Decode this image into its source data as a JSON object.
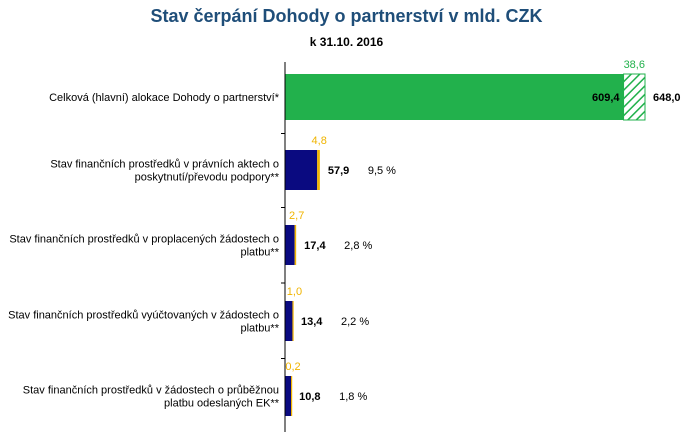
{
  "chart_data": {
    "type": "bar",
    "orientation": "horizontal",
    "title": "Stav čerpání Dohody o partnerství v mld. CZK",
    "subtitle": "k 31.10. 2016",
    "categories": [
      "Celková (hlavní) alokace Dohody o partnerství*",
      "Stav finančních prostředků v právních aktech o poskytnutí/převodu podpory**",
      "Stav finančních prostředků v proplacených žádostech o platbu**",
      "Stav finančních prostředků vyúčtovaných v žádostech o platbu**",
      "Stav finančních prostředků v žádostech o průběžnou platbu odeslaných EK**"
    ],
    "category_lines": [
      [
        "Celková (hlavní) alokace Dohody o partnerství*"
      ],
      [
        "Stav finančních prostředků v právních aktech o",
        "poskytnutí/převodu podpory**"
      ],
      [
        "Stav finančních prostředků v proplacených žádostech o",
        "platbu**"
      ],
      [
        "Stav finančních prostředků vyúčtovaných v žádostech o",
        "platbu**"
      ],
      [
        "Stav finančních prostředků v žádostech o průběžnou",
        "platbu odeslaných EK**"
      ]
    ],
    "series": [
      {
        "values": [
          609.4,
          57.9,
          17.4,
          13.4,
          10.8
        ],
        "value_labels": [
          "609,4",
          "57,9",
          "17,4",
          "13,4",
          "10,8"
        ]
      },
      {
        "values": [
          38.6,
          4.8,
          2.7,
          1.0,
          0.2
        ],
        "value_labels": [
          "38,6",
          "4,8",
          "2,7",
          "1,0",
          "0,2"
        ]
      }
    ],
    "totals": [
      {
        "value": 648.0,
        "label": "648,0"
      }
    ],
    "percent_labels": [
      "",
      "9,5 %",
      "2,8 %",
      "2,2 %",
      "1,8 %"
    ],
    "xlim": [
      0,
      648
    ],
    "grid": false,
    "colors": {
      "title": "#1f4e79",
      "allocation": "#22b14c",
      "allocation_reserve_hatch": "#22b14c",
      "main_bars": "#0a0a80",
      "secondary_bars": "#f0b400",
      "secondary_label_top": "#22b14c",
      "secondary_label_other": "#f0b400",
      "axis": "#000000"
    }
  }
}
